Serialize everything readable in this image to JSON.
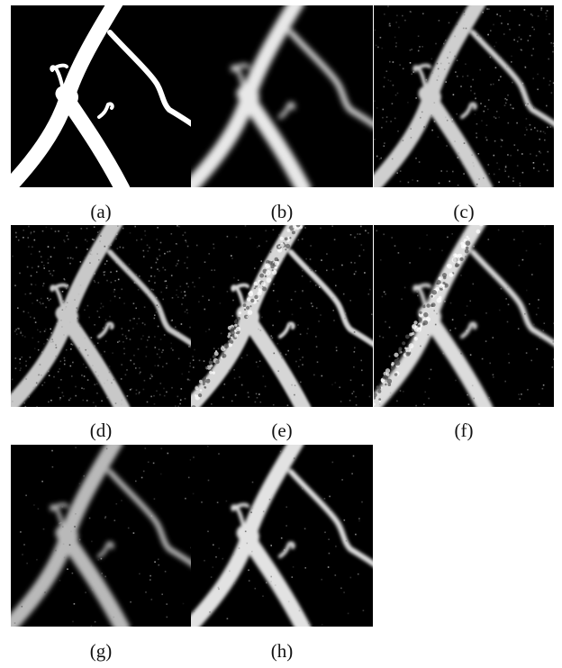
{
  "figure": {
    "panels": [
      {
        "label": "(a)",
        "style": "binary"
      },
      {
        "label": "(b)",
        "style": "blurred"
      },
      {
        "label": "(c)",
        "style": "noisy"
      },
      {
        "label": "(d)",
        "style": "very-noisy"
      },
      {
        "label": "(e)",
        "style": "speckled"
      },
      {
        "label": "(f)",
        "style": "speckled-smooth"
      },
      {
        "label": "(g)",
        "style": "soft"
      },
      {
        "label": "(h)",
        "style": "restored"
      }
    ]
  }
}
